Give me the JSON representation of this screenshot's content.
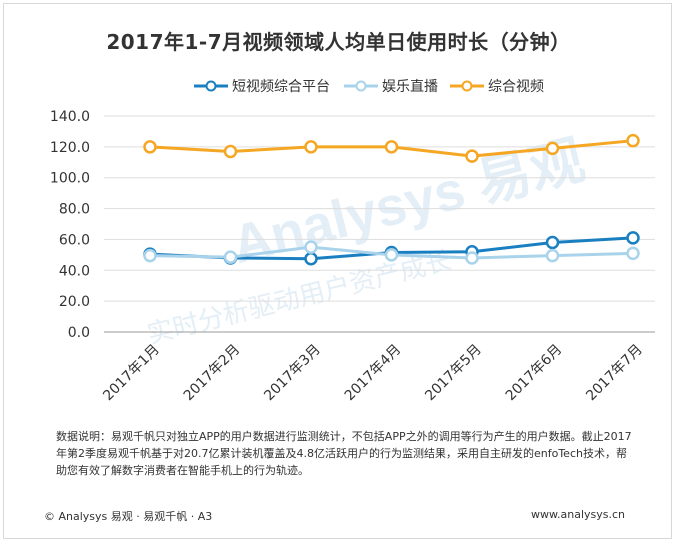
{
  "chart_data": {
    "type": "line",
    "title": "2017年1-7月视频领域人均单日使用时长（分钟）",
    "categories": [
      "2017年1月",
      "2017年2月",
      "2017年3月",
      "2017年4月",
      "2017年5月",
      "2017年6月",
      "2017年7月"
    ],
    "yticks": [
      "0.0",
      "20.0",
      "40.0",
      "60.0",
      "80.0",
      "100.0",
      "120.0",
      "140.0"
    ],
    "ylim": [
      0,
      140
    ],
    "grid": true,
    "legend_position": "top",
    "series": [
      {
        "name": "短视频综合平台",
        "color": "#1a7fc1",
        "values": [
          50.5,
          48.0,
          47.5,
          51.5,
          52.0,
          58.0,
          61.0
        ]
      },
      {
        "name": "娱乐直播",
        "color": "#a9d3ea",
        "values": [
          49.5,
          48.5,
          55.0,
          50.0,
          48.0,
          49.5,
          51.0
        ]
      },
      {
        "name": "综合视频",
        "color": "#f5a623",
        "values": [
          120.0,
          117.0,
          120.0,
          120.0,
          114.0,
          119.0,
          124.0
        ]
      }
    ]
  },
  "note": "数据说明：易观千帆只对独立APP的用户数据进行监测统计，不包括APP之外的调用等行为产生的用户数据。截止2017年第2季度易观千帆基于对20.7亿累计装机覆盖及4.8亿活跃用户的行为监测结果，采用自主研发的enfoTech技术，帮助您有效了解数字消费者在智能手机上的行为轨迹。",
  "footer": {
    "copyright": "© Analysys 易观 · 易观千帆 · A3",
    "url": "www.analysys.cn"
  },
  "watermark": {
    "text_main": "Analysys 易观",
    "text_sub": "实时分析驱动用户资产成长",
    "color": "#e3eef6"
  }
}
